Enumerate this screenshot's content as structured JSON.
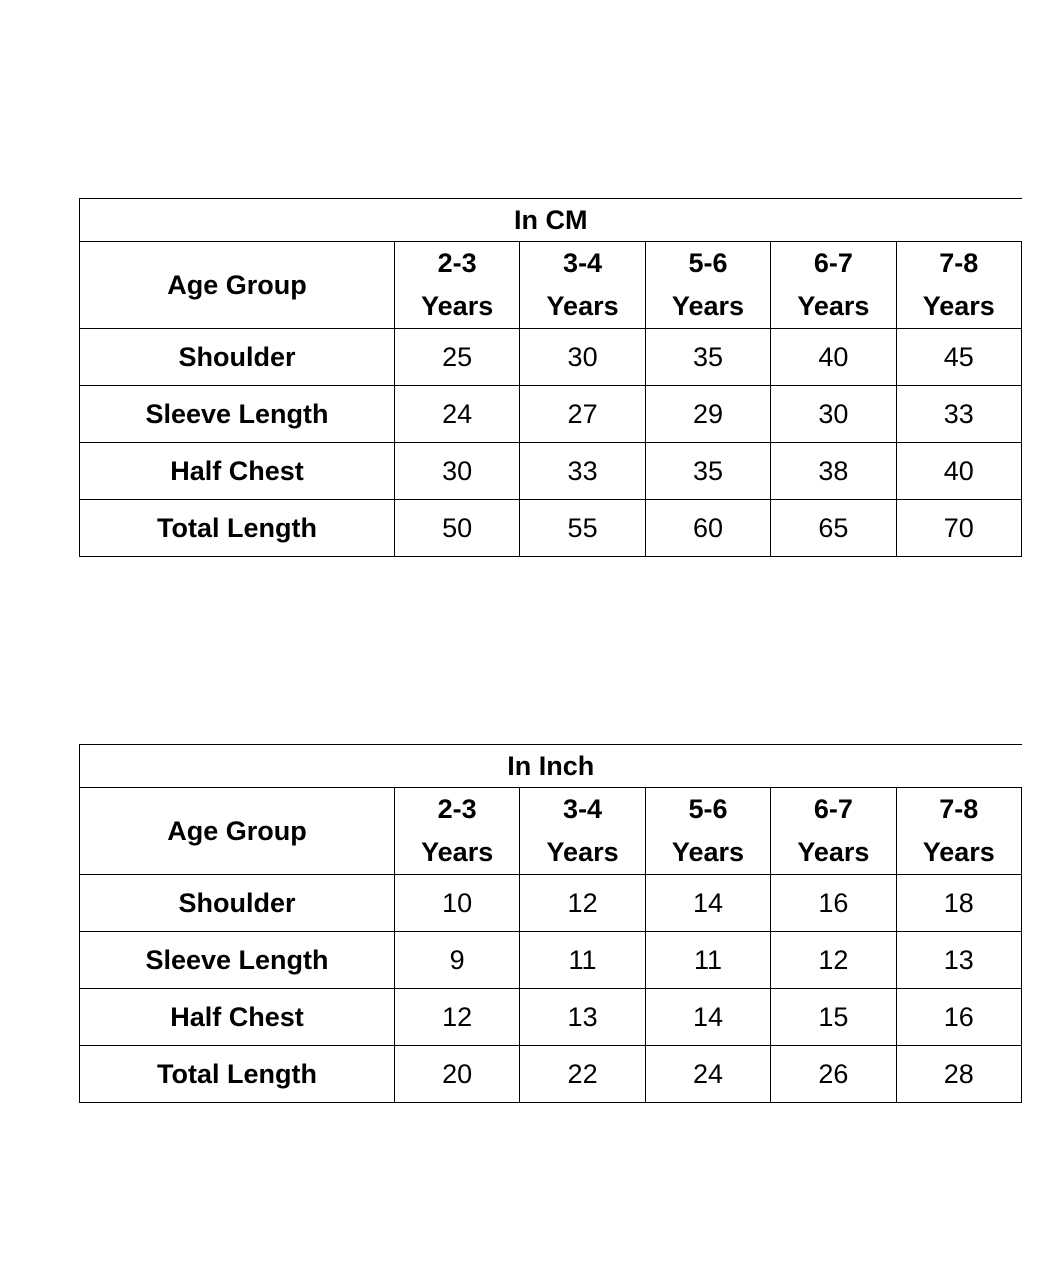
{
  "tables": [
    {
      "title": "In CM",
      "header_label": "Age Group",
      "columns": [
        {
          "range": "2-3",
          "unit": "Years"
        },
        {
          "range": "3-4",
          "unit": "Years"
        },
        {
          "range": "5-6",
          "unit": "Years"
        },
        {
          "range": "6-7",
          "unit": "Years"
        },
        {
          "range": "7-8",
          "unit": "Years"
        }
      ],
      "rows": [
        {
          "label": "Shoulder",
          "values": [
            "25",
            "30",
            "35",
            "40",
            "45"
          ]
        },
        {
          "label": "Sleeve Length",
          "values": [
            "24",
            "27",
            "29",
            "30",
            "33"
          ]
        },
        {
          "label": "Half Chest",
          "values": [
            "30",
            "33",
            "35",
            "38",
            "40"
          ]
        },
        {
          "label": "Total Length",
          "values": [
            "50",
            "55",
            "60",
            "65",
            "70"
          ]
        }
      ]
    },
    {
      "title": "In Inch",
      "header_label": "Age Group",
      "columns": [
        {
          "range": "2-3",
          "unit": "Years"
        },
        {
          "range": "3-4",
          "unit": "Years"
        },
        {
          "range": "5-6",
          "unit": "Years"
        },
        {
          "range": "6-7",
          "unit": "Years"
        },
        {
          "range": "7-8",
          "unit": "Years"
        }
      ],
      "rows": [
        {
          "label": "Shoulder",
          "values": [
            "10",
            "12",
            "14",
            "16",
            "18"
          ]
        },
        {
          "label": "Sleeve Length",
          "values": [
            "9",
            "11",
            "11",
            "12",
            "13"
          ]
        },
        {
          "label": "Half Chest",
          "values": [
            "12",
            "13",
            "14",
            "15",
            "16"
          ]
        },
        {
          "label": "Total Length",
          "values": [
            "20",
            "22",
            "24",
            "26",
            "28"
          ]
        }
      ]
    }
  ]
}
